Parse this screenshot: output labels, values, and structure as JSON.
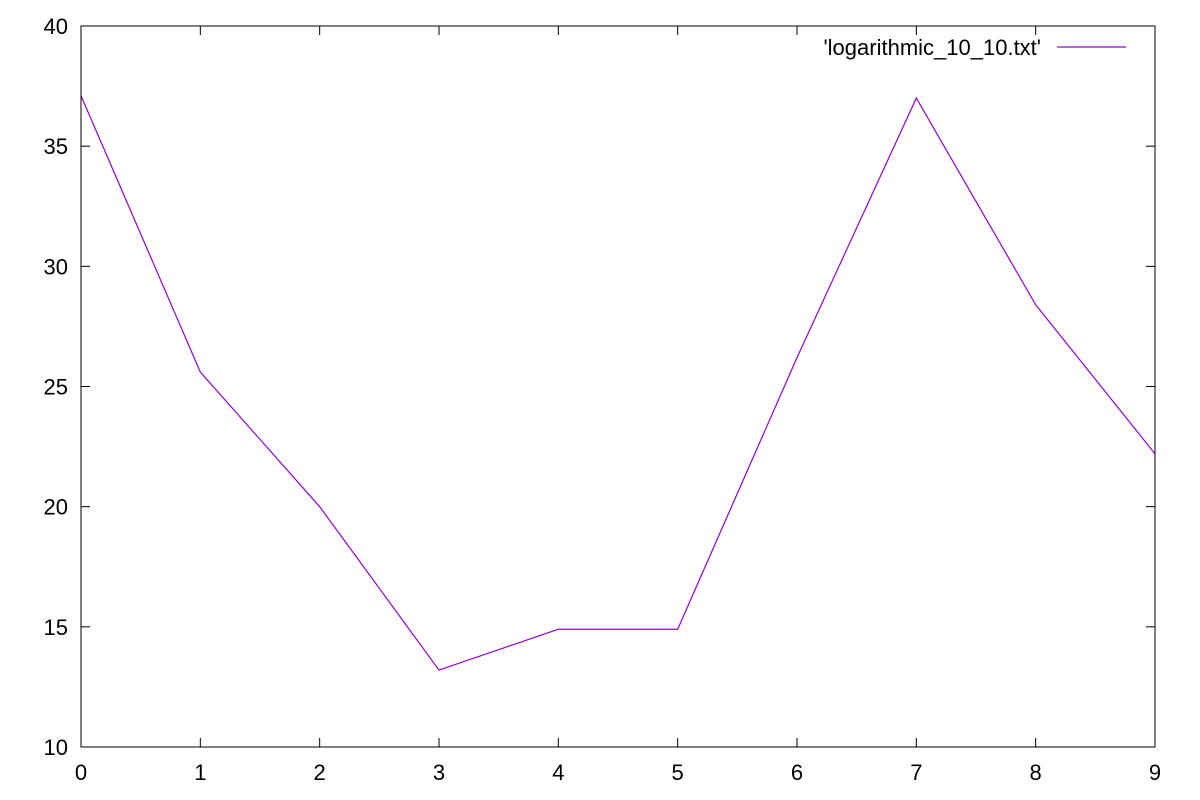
{
  "chart_data": {
    "type": "line",
    "x": [
      0,
      1,
      2,
      3,
      4,
      5,
      6,
      7,
      8,
      9
    ],
    "series": [
      {
        "name": "'logarithmic_10_10.txt'",
        "values": [
          37.1,
          25.6,
          20.0,
          13.2,
          14.9,
          14.9,
          26.2,
          37.0,
          28.4,
          22.2
        ],
        "color": "#9400d3"
      }
    ],
    "xlim": [
      0,
      9
    ],
    "ylim": [
      10,
      40
    ],
    "xticks": [
      0,
      1,
      2,
      3,
      4,
      5,
      6,
      7,
      8,
      9
    ],
    "yticks": [
      10,
      15,
      20,
      25,
      30,
      35,
      40
    ],
    "title": "",
    "xlabel": "",
    "ylabel": "",
    "grid": false,
    "legend_position": "top-right"
  }
}
